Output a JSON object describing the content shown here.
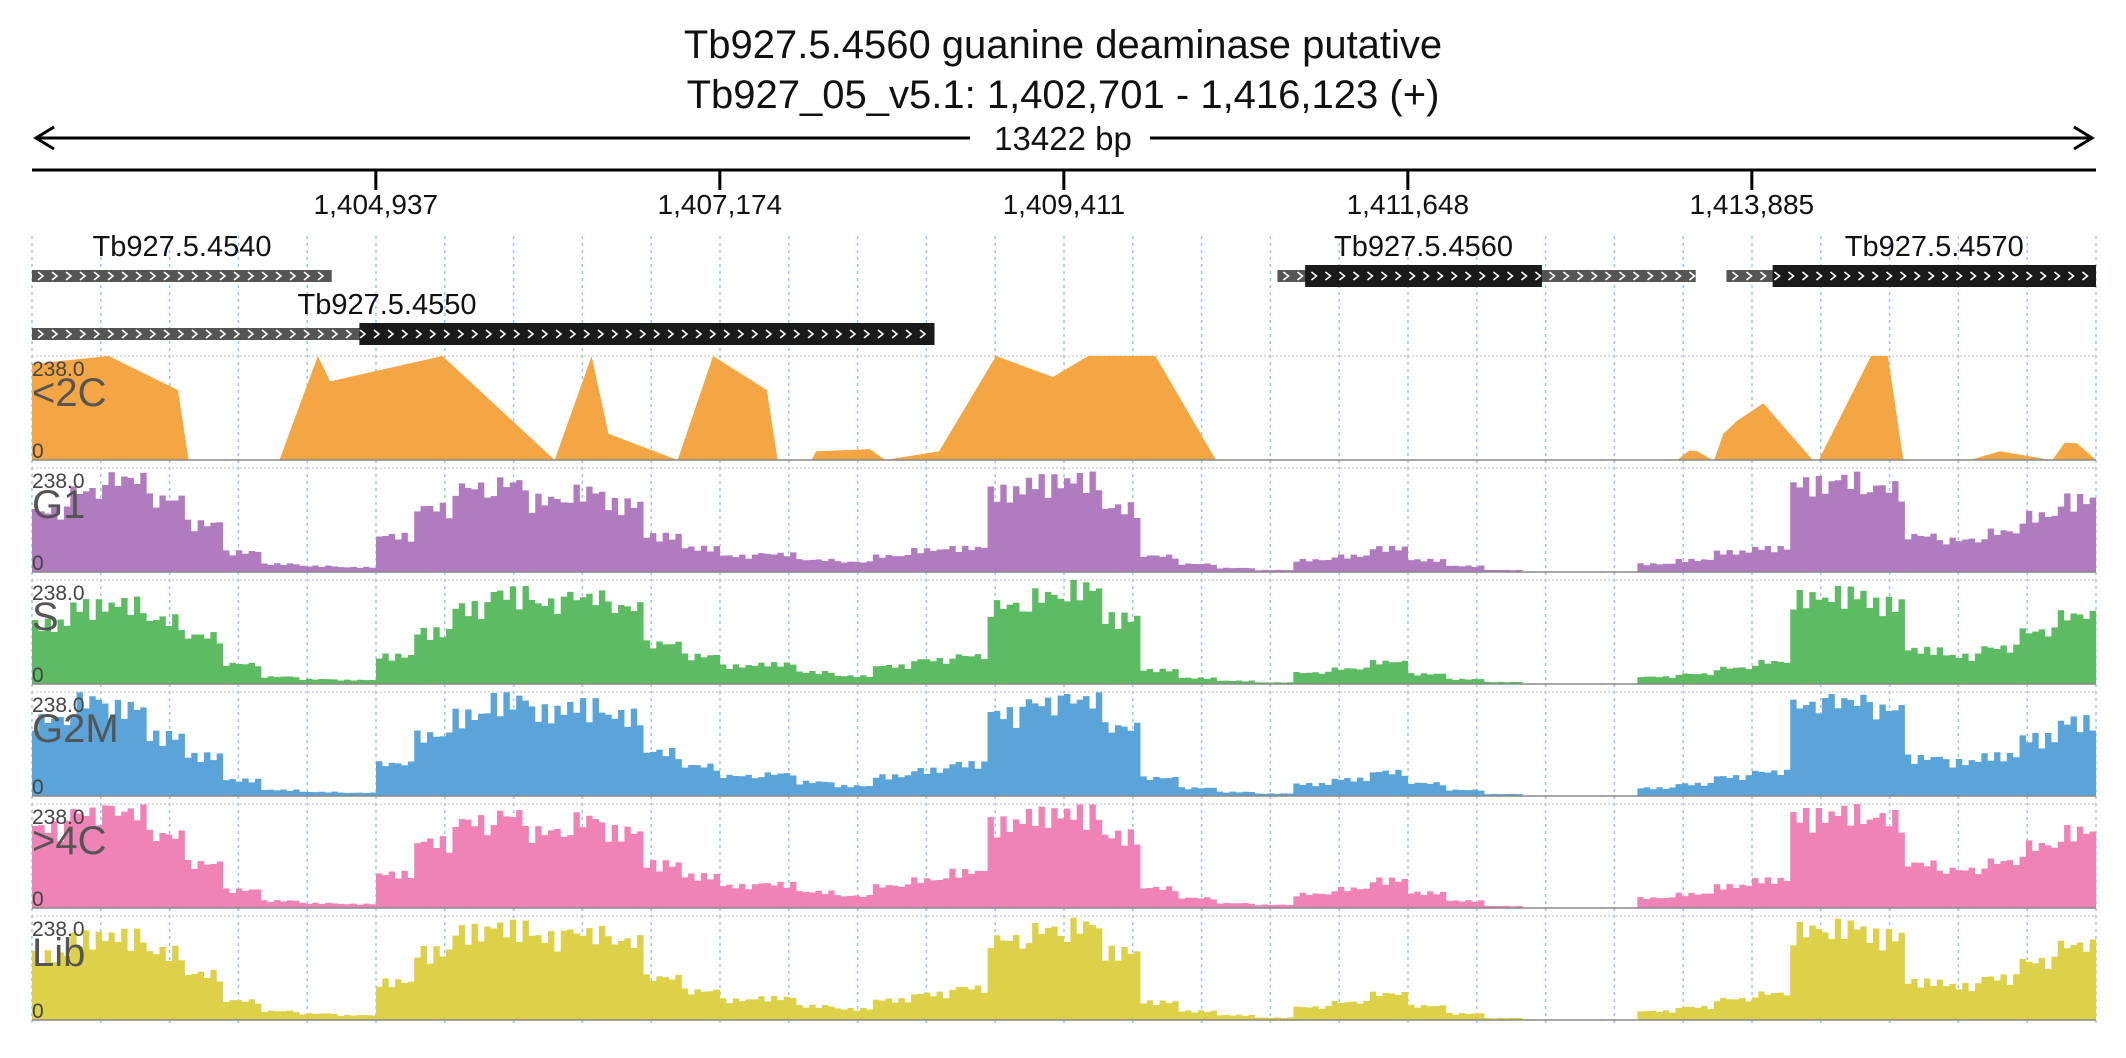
{
  "chart_data": {
    "type": "area",
    "title": "Tb927.5.4560  guanine deaminase  putative",
    "subtitle": "Tb927_05_v5.1: 1,402,701 - 1,416,123 (+)",
    "span_label": "13422 bp",
    "x_range": [
      1402701,
      1416123
    ],
    "ticks": [
      {
        "value": 1404937,
        "label": "1,404,937"
      },
      {
        "value": 1407174,
        "label": "1,407,174"
      },
      {
        "value": 1409411,
        "label": "1,409,411"
      },
      {
        "value": 1411648,
        "label": "1,411,648"
      },
      {
        "value": 1413885,
        "label": "1,413,885"
      }
    ],
    "genes": [
      {
        "name": "Tb927.5.4540",
        "row": 0,
        "start": 1402701,
        "end": 1404650,
        "cds": []
      },
      {
        "name": "Tb927.5.4550",
        "row": 1,
        "start": 1402701,
        "end": 1408570,
        "cds": [
          [
            1404830,
            1408570
          ]
        ]
      },
      {
        "name": "Tb927.5.4560",
        "row": 0,
        "start": 1410800,
        "end": 1413520,
        "cds": [
          [
            1410980,
            1412520
          ]
        ]
      },
      {
        "name": "Tb927.5.4570",
        "row": 0,
        "start": 1413720,
        "end": 1416123,
        "cds": [
          [
            1414020,
            1416123
          ]
        ]
      }
    ],
    "y_range": [
      0,
      238.0
    ],
    "y_max_label": "238.0",
    "y_min_label": "0",
    "series": [
      {
        "name": "<2C",
        "color": "#F4A644",
        "x": [
          1402701,
          1403200,
          1403650,
          1403720,
          1404200,
          1404310,
          1404560,
          1404640,
          1405370,
          1406100,
          1406340,
          1406450,
          1406900,
          1407130,
          1407480,
          1407550,
          1407770,
          1407800,
          1408150,
          1408250,
          1408600,
          1408970,
          1409340,
          1409570,
          1410007,
          1410400,
          1410700,
          1411000,
          1411900,
          1412100,
          1412170,
          1413400,
          1413480,
          1413530,
          1413630,
          1413640,
          1413700,
          1413790,
          1413960,
          1414280,
          1414320,
          1414660,
          1414770,
          1414870,
          1415300,
          1415500,
          1415830,
          1415840,
          1415920,
          1416000,
          1416123
        ],
        "values": [
          220,
          238,
          160,
          0,
          0,
          0,
          238,
          180,
          238,
          0,
          238,
          60,
          0,
          238,
          160,
          0,
          0,
          20,
          25,
          0,
          20,
          238,
          190,
          238,
          238,
          0,
          0,
          0,
          0,
          0,
          0,
          0,
          22,
          20,
          0,
          0,
          60,
          90,
          130,
          0,
          0,
          238,
          238,
          0,
          0,
          20,
          0,
          0,
          40,
          38,
          0
        ],
        "max": 238,
        "min": 0
      },
      {
        "name": "G1",
        "color": "#B07CBF",
        "profile": [
          150,
          200,
          230,
          180,
          120,
          50,
          20,
          15,
          12,
          90,
          160,
          210,
          220,
          180,
          200,
          170,
          90,
          60,
          40,
          45,
          30,
          25,
          40,
          55,
          60,
          200,
          225,
          230,
          160,
          40,
          20,
          10,
          5,
          30,
          40,
          60,
          30,
          15,
          5,
          0,
          0,
          0,
          20,
          30,
          50,
          60,
          220,
          230,
          210,
          90,
          80,
          100,
          140,
          180
        ]
      },
      {
        "name": "S",
        "color": "#5DBB63",
        "profile": [
          150,
          195,
          200,
          160,
          120,
          50,
          18,
          12,
          10,
          70,
          130,
          190,
          225,
          200,
          215,
          190,
          100,
          70,
          45,
          50,
          30,
          20,
          45,
          60,
          70,
          195,
          220,
          238,
          165,
          35,
          15,
          8,
          4,
          28,
          38,
          55,
          25,
          12,
          5,
          0,
          0,
          0,
          18,
          25,
          40,
          55,
          215,
          225,
          200,
          85,
          70,
          90,
          130,
          170
        ]
      },
      {
        "name": "G2M",
        "color": "#5AA4DA",
        "profile": [
          190,
          238,
          220,
          150,
          100,
          40,
          15,
          10,
          8,
          80,
          150,
          200,
          238,
          210,
          225,
          200,
          110,
          75,
          50,
          55,
          35,
          25,
          50,
          65,
          80,
          205,
          230,
          238,
          170,
          45,
          20,
          10,
          6,
          30,
          42,
          60,
          32,
          15,
          5,
          0,
          0,
          0,
          20,
          30,
          48,
          60,
          225,
          235,
          215,
          95,
          85,
          100,
          145,
          185
        ]
      },
      {
        "name": ">4C",
        "color": "#F083B6",
        "profile": [
          200,
          235,
          238,
          180,
          110,
          45,
          18,
          12,
          10,
          85,
          165,
          215,
          230,
          190,
          220,
          190,
          110,
          80,
          55,
          60,
          40,
          30,
          55,
          70,
          90,
          210,
          232,
          238,
          180,
          50,
          25,
          12,
          8,
          35,
          48,
          70,
          38,
          18,
          5,
          0,
          0,
          0,
          25,
          35,
          55,
          70,
          230,
          238,
          225,
          110,
          95,
          115,
          155,
          190
        ]
      },
      {
        "name": "Lib",
        "color": "#DCD148",
        "profile": [
          160,
          205,
          210,
          170,
          115,
          48,
          22,
          16,
          12,
          95,
          170,
          220,
          230,
          205,
          215,
          195,
          105,
          72,
          50,
          55,
          35,
          28,
          50,
          65,
          80,
          200,
          225,
          235,
          170,
          45,
          22,
          12,
          6,
          32,
          44,
          65,
          35,
          16,
          5,
          0,
          0,
          0,
          22,
          32,
          52,
          66,
          225,
          232,
          210,
          95,
          85,
          105,
          145,
          185
        ]
      }
    ]
  }
}
